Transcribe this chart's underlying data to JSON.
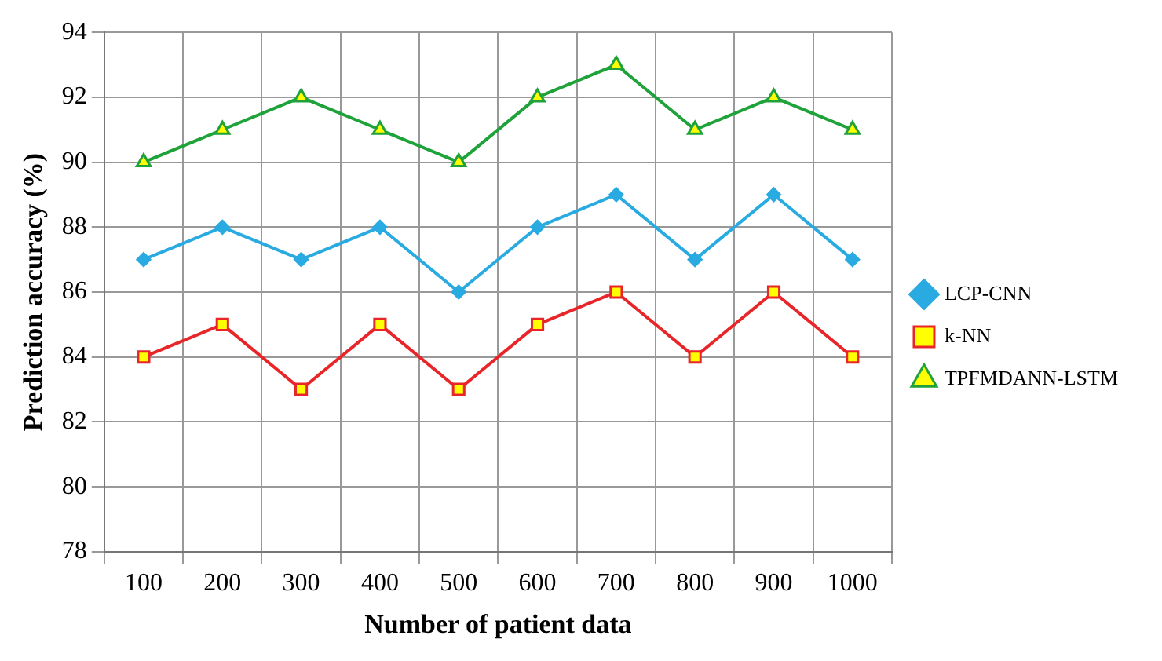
{
  "chart_data": {
    "type": "line",
    "xlabel": "Number of patient data",
    "ylabel": "Prediction accuracy (%)",
    "categories": [
      "100",
      "200",
      "300",
      "400",
      "500",
      "600",
      "700",
      "800",
      "900",
      "1000"
    ],
    "series": [
      {
        "name": "LCP-CNN",
        "color": "#29abe2",
        "marker": "diamond",
        "values": [
          87,
          88,
          87,
          88,
          86,
          88,
          89,
          87,
          89,
          87
        ]
      },
      {
        "name": "k-NN",
        "color": "#e8262a",
        "marker": "square",
        "values": [
          84,
          85,
          83,
          85,
          83,
          85,
          86,
          84,
          86,
          84
        ]
      },
      {
        "name": "TPFMDANN-LSTM",
        "color": "#1fa23a",
        "marker": "triangle",
        "values": [
          90,
          91,
          92,
          91,
          90,
          92,
          93,
          91,
          92,
          91
        ]
      }
    ],
    "ylim": [
      78,
      94
    ],
    "yticks": [
      78,
      80,
      82,
      84,
      86,
      88,
      90,
      92,
      94
    ],
    "grid": true,
    "legend": "right",
    "line_style": "solid"
  }
}
